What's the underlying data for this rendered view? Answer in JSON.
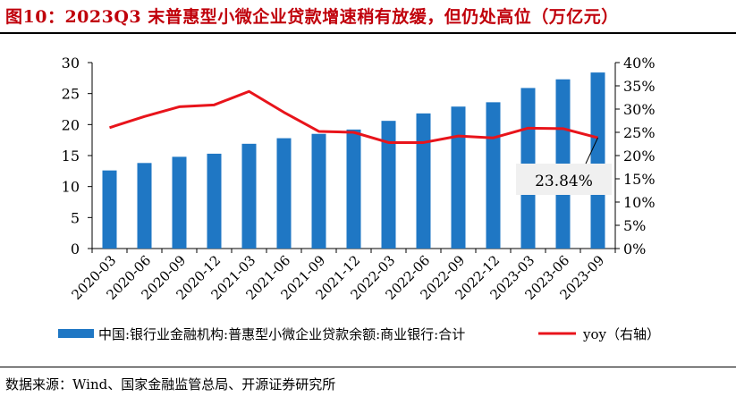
{
  "header": {
    "title": "图10：2023Q3 末普惠型小微企业贷款增速稍有放缓，但仍处高位（万亿元）"
  },
  "footer": {
    "source": "数据来源：Wind、国家金融监管总局、开源证券研究所"
  },
  "colors": {
    "title": "#c0000b",
    "bar": "#1f77c4",
    "line": "#e8141b",
    "callout_bg": "#f0f0f0"
  },
  "chart_data": {
    "type": "bar",
    "categories": [
      "2020-03",
      "2020-06",
      "2020-09",
      "2020-12",
      "2021-03",
      "2021-06",
      "2021-09",
      "2021-12",
      "2022-03",
      "2022-06",
      "2022-09",
      "2022-12",
      "2023-03",
      "2023-06",
      "2023-09"
    ],
    "series": [
      {
        "name": "中国:银行业金融机构:普惠型小微企业贷款余额:商业银行:合计",
        "type": "bar",
        "axis": "left",
        "values": [
          12.6,
          13.8,
          14.8,
          15.3,
          16.9,
          17.8,
          18.5,
          19.2,
          20.6,
          21.8,
          22.9,
          23.6,
          25.9,
          27.3,
          28.4
        ]
      },
      {
        "name": "yoy（右轴）",
        "type": "line",
        "axis": "right",
        "values": [
          26.0,
          28.4,
          30.5,
          30.9,
          33.8,
          29.3,
          25.2,
          25.0,
          22.8,
          22.8,
          24.2,
          23.8,
          25.9,
          25.8,
          23.84
        ]
      }
    ],
    "left_axis": {
      "ylim": [
        0,
        30
      ],
      "ticks": [
        "0",
        "5",
        "10",
        "15",
        "20",
        "25",
        "30"
      ]
    },
    "right_axis": {
      "ylim": [
        0,
        40
      ],
      "ticks": [
        "0%",
        "5%",
        "10%",
        "15%",
        "20%",
        "25%",
        "30%",
        "35%",
        "40%"
      ]
    },
    "annotation": {
      "text": "23.84%",
      "category": "2023-09",
      "series": "yoy（右轴）"
    },
    "legend_position": "bottom",
    "grid": false
  }
}
